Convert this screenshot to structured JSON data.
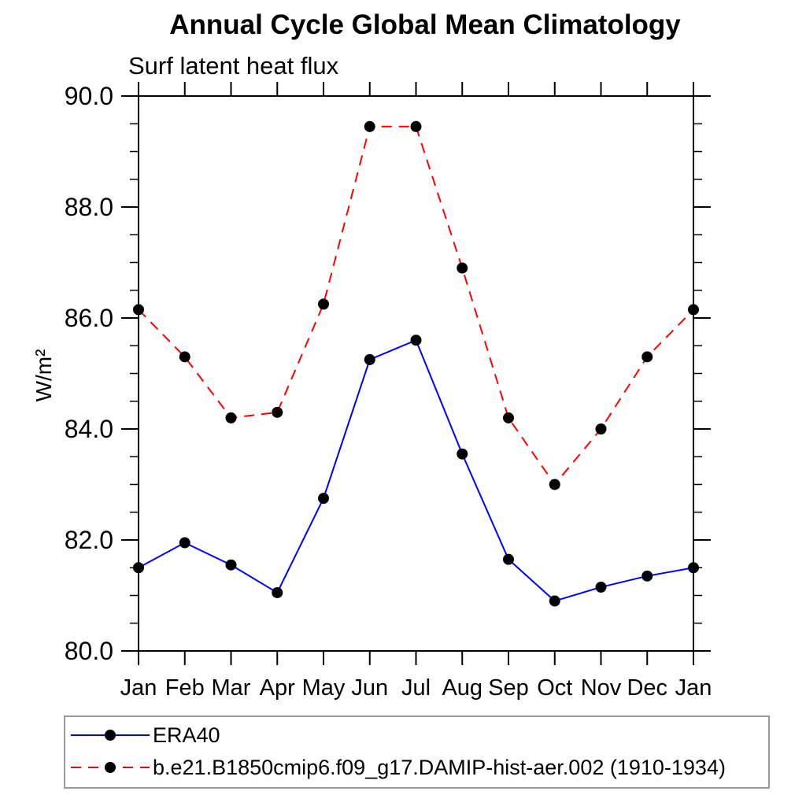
{
  "chart": {
    "title": "Annual Cycle Global Mean Climatology",
    "subtitle": "Surf latent heat flux",
    "ylabel": "W/m²"
  },
  "legend": {
    "position": "bottom",
    "items": [
      {
        "label": "ERA40"
      },
      {
        "label": "b.e21.B1850cmip6.f09_g17.DAMIP-hist-aer.002 (1910-1934)"
      }
    ]
  },
  "chart_data": {
    "type": "line",
    "title": "Annual Cycle Global Mean Climatology",
    "subtitle": "Surf latent heat flux",
    "xlabel": "",
    "ylabel": "W/m²",
    "categories": [
      "Jan",
      "Feb",
      "Mar",
      "Apr",
      "May",
      "Jun",
      "Jul",
      "Aug",
      "Sep",
      "Oct",
      "Nov",
      "Dec",
      "Jan"
    ],
    "series": [
      {
        "name": "ERA40",
        "color": "#0000ff",
        "line_style": "solid",
        "marker": "filled-circle",
        "marker_color": "#000000",
        "values": [
          81.5,
          81.95,
          81.55,
          81.05,
          82.75,
          85.25,
          85.6,
          83.55,
          81.65,
          80.9,
          81.15,
          81.35,
          81.5
        ]
      },
      {
        "name": "b.e21.B1850cmip6.f09_g17.DAMIP-hist-aer.002 (1910-1934)",
        "color": "#ff0000",
        "line_style": "dashed",
        "marker": "filled-circle",
        "marker_color": "#000000",
        "values": [
          86.15,
          85.3,
          84.2,
          84.3,
          86.25,
          89.45,
          89.45,
          86.9,
          84.2,
          83.0,
          84.0,
          85.3,
          86.15
        ]
      }
    ],
    "ylim": [
      80.0,
      90.0
    ],
    "ytick_major": [
      80,
      82,
      84,
      86,
      88,
      90
    ],
    "ytick_labels": [
      "80.0",
      "82.0",
      "84.0",
      "86.0",
      "88.0",
      "90.0"
    ],
    "ytick_minor_step": 0.5,
    "grid": false,
    "legend_position": "bottom",
    "axis_color": "#000000"
  }
}
